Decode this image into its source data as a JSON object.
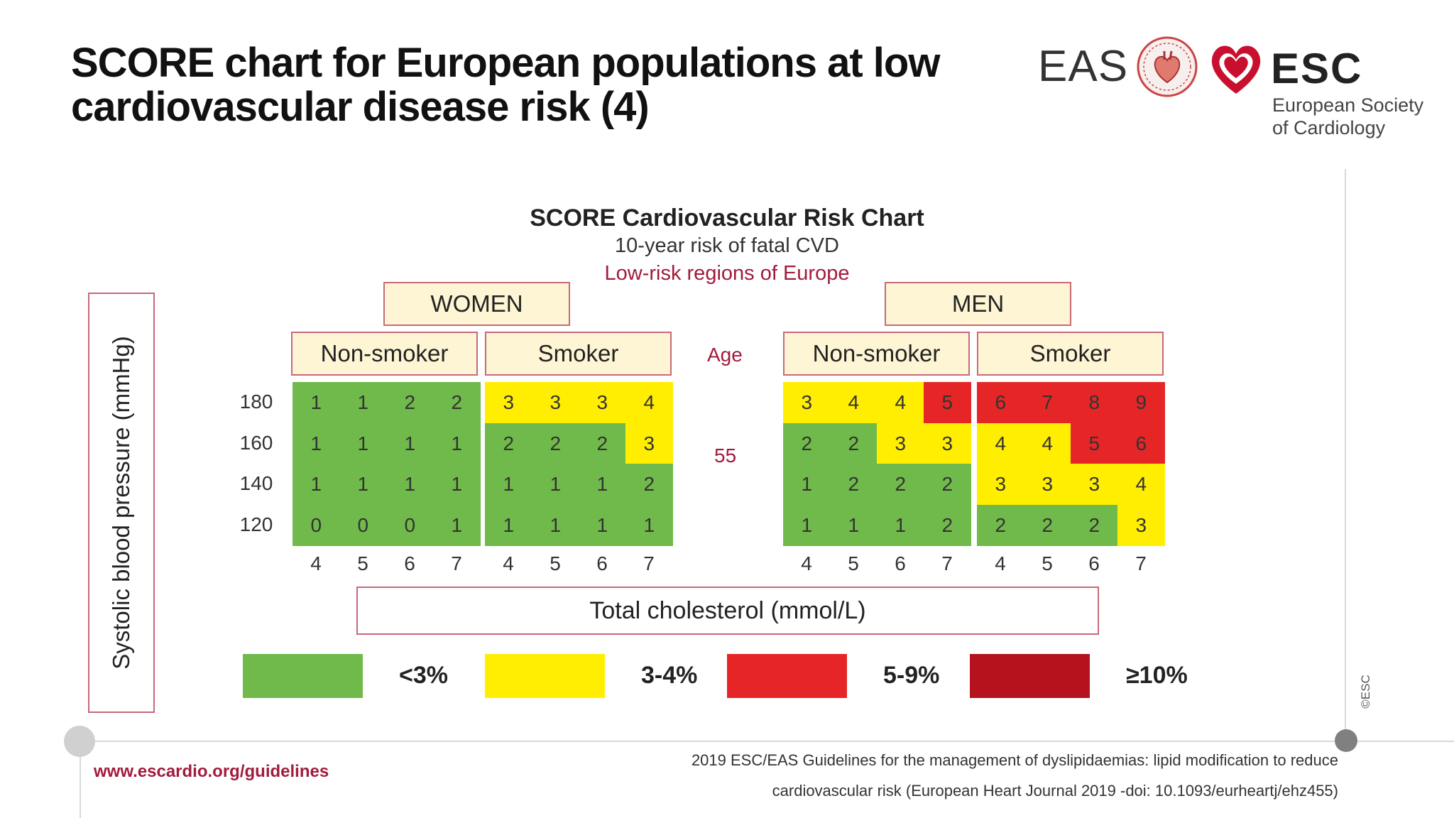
{
  "slide": {
    "title_line1": "SCORE chart for European populations at low",
    "title_line2": "cardiovascular disease risk (4)"
  },
  "logos": {
    "eas": "EAS",
    "esc": "ESC",
    "esc_sub1": "European Society",
    "esc_sub2": "of Cardiology"
  },
  "footer": {
    "url": "www.escardio.org/guidelines",
    "reference_line1": "2019 ESC/EAS Guidelines for the management of dyslipidaemias: lipid modification to reduce",
    "reference_line2": "cardiovascular risk (European Heart Journal 2019 -doi: 10.1093/eurheartj/ehz455)",
    "copyright": "©ESC"
  },
  "colors": {
    "green": "#70ba4b",
    "yellow": "#ffee00",
    "red": "#e62626",
    "darkred": "#b5121e",
    "accent": "#a21b3d",
    "box_fill": "#fdf5d3",
    "box_border": "#c9687a"
  },
  "chart_data": {
    "type": "heatmap",
    "title": "SCORE Cardiovascular Risk Chart",
    "subtitle": "10-year risk of fatal CVD",
    "region": "Low-risk regions of Europe",
    "ylabel": "Systolic blood pressure (mmHg)",
    "xlabel": "Total cholesterol (mmol/L)",
    "age_label": "Age",
    "age": "55",
    "sbp": [
      "180",
      "160",
      "140",
      "120"
    ],
    "cholesterol": [
      "4",
      "5",
      "6",
      "7"
    ],
    "groups": [
      {
        "sex": "WOMEN",
        "panels": [
          {
            "smoking": "Non-smoker",
            "values": [
              [
                1,
                1,
                2,
                2
              ],
              [
                1,
                1,
                1,
                1
              ],
              [
                1,
                1,
                1,
                1
              ],
              [
                0,
                0,
                0,
                1
              ]
            ]
          },
          {
            "smoking": "Smoker",
            "values": [
              [
                3,
                3,
                3,
                4
              ],
              [
                2,
                2,
                2,
                3
              ],
              [
                1,
                1,
                1,
                2
              ],
              [
                1,
                1,
                1,
                1
              ]
            ]
          }
        ]
      },
      {
        "sex": "MEN",
        "panels": [
          {
            "smoking": "Non-smoker",
            "values": [
              [
                3,
                4,
                4,
                5
              ],
              [
                2,
                2,
                3,
                3
              ],
              [
                1,
                2,
                2,
                2
              ],
              [
                1,
                1,
                1,
                2
              ]
            ]
          },
          {
            "smoking": "Smoker",
            "values": [
              [
                6,
                7,
                8,
                9
              ],
              [
                4,
                4,
                5,
                6
              ],
              [
                3,
                3,
                3,
                4
              ],
              [
                2,
                2,
                2,
                3
              ]
            ]
          }
        ]
      }
    ],
    "legend": [
      {
        "label": "<3%",
        "color": "#70ba4b"
      },
      {
        "label": "3-4%",
        "color": "#ffee00"
      },
      {
        "label": "5-9%",
        "color": "#e62626"
      },
      {
        "label": "≥10%",
        "color": "#b5121e"
      }
    ]
  }
}
